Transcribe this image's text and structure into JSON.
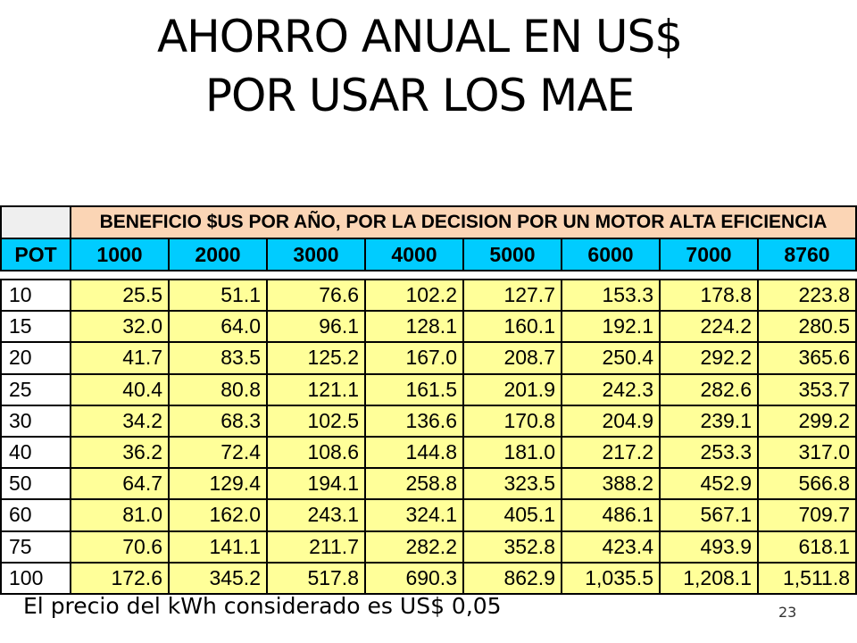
{
  "title": {
    "line1": "AHORRO ANUAL EN US$",
    "line2": "POR USAR LOS MAE"
  },
  "table": {
    "header": "BENEFICIO $US POR AÑO, POR LA DECISION POR UN MOTOR ALTA EFICIENCIA",
    "pot_label": "POT",
    "columns": [
      "1000",
      "2000",
      "3000",
      "4000",
      "5000",
      "6000",
      "7000",
      "8760"
    ],
    "rows": [
      {
        "pot": "10",
        "values": [
          "25.5",
          "51.1",
          "76.6",
          "102.2",
          "127.7",
          "153.3",
          "178.8",
          "223.8"
        ]
      },
      {
        "pot": "15",
        "values": [
          "32.0",
          "64.0",
          "96.1",
          "128.1",
          "160.1",
          "192.1",
          "224.2",
          "280.5"
        ]
      },
      {
        "pot": "20",
        "values": [
          "41.7",
          "83.5",
          "125.2",
          "167.0",
          "208.7",
          "250.4",
          "292.2",
          "365.6"
        ]
      },
      {
        "pot": "25",
        "values": [
          "40.4",
          "80.8",
          "121.1",
          "161.5",
          "201.9",
          "242.3",
          "282.6",
          "353.7"
        ]
      },
      {
        "pot": "30",
        "values": [
          "34.2",
          "68.3",
          "102.5",
          "136.6",
          "170.8",
          "204.9",
          "239.1",
          "299.2"
        ]
      },
      {
        "pot": "40",
        "values": [
          "36.2",
          "72.4",
          "108.6",
          "144.8",
          "181.0",
          "217.2",
          "253.3",
          "317.0"
        ]
      },
      {
        "pot": "50",
        "values": [
          "64.7",
          "129.4",
          "194.1",
          "258.8",
          "323.5",
          "388.2",
          "452.9",
          "566.8"
        ]
      },
      {
        "pot": "60",
        "values": [
          "81.0",
          "162.0",
          "243.1",
          "324.1",
          "405.1",
          "486.1",
          "567.1",
          "709.7"
        ]
      },
      {
        "pot": "75",
        "values": [
          "70.6",
          "141.1",
          "211.7",
          "282.2",
          "352.8",
          "423.4",
          "493.9",
          "618.1"
        ]
      },
      {
        "pot": "100",
        "values": [
          "172.6",
          "345.2",
          "517.8",
          "690.3",
          "862.9",
          "1,035.5",
          "1,208.1",
          "1,511.8"
        ]
      }
    ]
  },
  "footnote": "El precio del kWh considerado es US$ 0,05",
  "page_number": "23",
  "colors": {
    "header_fill": "#fbd5b5",
    "column_header_fill": "#00ccff",
    "value_fill": "#ffff99"
  }
}
